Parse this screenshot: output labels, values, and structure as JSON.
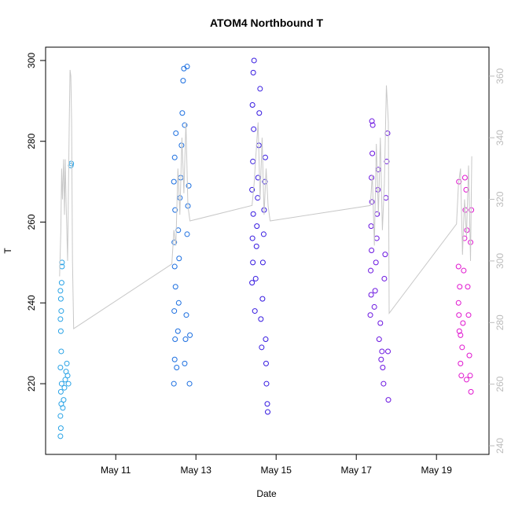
{
  "chart_data": {
    "type": "scatter",
    "title": "ATOM4 Northbound T",
    "x_label": "Date",
    "y_label": "T",
    "xlim": [
      9.25,
      20.31
    ],
    "ylim": [
      202.5,
      303.3
    ],
    "y2lim": [
      237.2,
      369.4
    ],
    "xticks": [
      {
        "value": 11,
        "label": "May 11"
      },
      {
        "value": 13,
        "label": "May 13"
      },
      {
        "value": 15,
        "label": "May 15"
      },
      {
        "value": 17,
        "label": "May 17"
      },
      {
        "value": 19,
        "label": "May 19"
      }
    ],
    "yticks": [
      220,
      240,
      260,
      280,
      300
    ],
    "y2ticks": [
      240,
      260,
      280,
      300,
      320,
      340,
      360
    ],
    "series": [
      {
        "type": "scatter",
        "color": "#29a3e6",
        "x": [
          9.62,
          9.63,
          9.62,
          9.64,
          9.63,
          9.65,
          9.62,
          9.64,
          9.63,
          9.62,
          9.64,
          9.63,
          9.62,
          9.65,
          9.66,
          9.66,
          9.68,
          9.7,
          9.72,
          9.74,
          9.76,
          9.78,
          9.8,
          9.82,
          9.88,
          9.89
        ],
        "values": [
          207,
          209,
          212,
          215,
          218,
          220,
          224,
          228,
          233,
          236,
          238,
          241,
          243,
          245,
          249,
          250,
          214,
          216,
          219,
          221,
          223,
          225,
          222,
          220,
          274,
          274.5
        ]
      },
      {
        "type": "scatter",
        "color": "#1a6ee0",
        "x": [
          12.45,
          12.47,
          12.48,
          12.46,
          12.49,
          12.47,
          12.46,
          12.48,
          12.45,
          12.47,
          12.5,
          12.52,
          12.55,
          12.57,
          12.58,
          12.56,
          12.6,
          12.62,
          12.64,
          12.66,
          12.68,
          12.7,
          12.72,
          12.74,
          12.76,
          12.78,
          12.8,
          12.82,
          12.84,
          12.85,
          12.78,
          12.72
        ],
        "values": [
          220,
          226,
          231,
          238,
          244,
          249,
          255,
          263,
          270,
          276,
          282,
          224,
          233,
          240,
          251,
          258,
          266,
          271,
          279,
          287,
          295,
          298,
          225,
          231,
          237,
          257,
          264,
          269,
          220,
          232,
          298.5,
          284
        ]
      },
      {
        "type": "scatter",
        "color": "#3519e0",
        "x": [
          14.4,
          14.42,
          14.41,
          14.43,
          14.4,
          14.42,
          14.44,
          14.41,
          14.43,
          14.45,
          14.47,
          14.49,
          14.51,
          14.52,
          14.54,
          14.55,
          14.57,
          14.58,
          14.6,
          14.62,
          14.64,
          14.66,
          14.67,
          14.69,
          14.7,
          14.72,
          14.73,
          14.75,
          14.76,
          14.78,
          14.79,
          14.74
        ],
        "values": [
          245,
          250,
          256,
          262,
          268,
          275,
          283,
          289,
          297,
          300,
          238,
          246,
          254,
          259,
          266,
          271,
          279,
          287,
          293,
          236,
          229,
          241,
          250,
          257,
          263,
          270,
          276,
          225,
          220,
          215,
          213,
          231
        ]
      },
      {
        "type": "scatter",
        "color": "#6a14e0",
        "x": [
          17.35,
          17.37,
          17.36,
          17.38,
          17.37,
          17.39,
          17.38,
          17.4,
          17.39,
          17.41,
          17.45,
          17.47,
          17.49,
          17.51,
          17.52,
          17.54,
          17.55,
          17.57,
          17.6,
          17.62,
          17.64,
          17.66,
          17.68,
          17.7,
          17.72,
          17.74,
          17.76,
          17.78,
          17.8,
          17.79
        ],
        "values": [
          237,
          242,
          248,
          253,
          259,
          265,
          271,
          277,
          285,
          284,
          239,
          243,
          250,
          256,
          262,
          268,
          273,
          231,
          235,
          226,
          228,
          224,
          220,
          246,
          252,
          266,
          275,
          282,
          216,
          228
        ]
      },
      {
        "type": "scatter",
        "color": "#e014cf",
        "x": [
          19.55,
          19.56,
          19.57,
          19.55,
          19.58,
          19.6,
          19.62,
          19.64,
          19.66,
          19.68,
          19.7,
          19.72,
          19.74,
          19.71,
          19.76,
          19.78,
          19.8,
          19.82,
          19.84,
          19.86,
          19.85,
          19.87,
          19.56,
          19.6,
          19.75
        ],
        "values": [
          240,
          237,
          233,
          249,
          244,
          225,
          222,
          229,
          235,
          248,
          256,
          263,
          268,
          271,
          258,
          244,
          237,
          227,
          222,
          218,
          255,
          263,
          270,
          232,
          221
        ]
      },
      {
        "type": "line",
        "axis": "y2",
        "color": "#c8c8c8",
        "x": [
          9.6,
          9.63,
          9.65,
          9.67,
          9.7,
          9.72,
          9.74,
          9.76,
          9.8,
          9.84,
          9.86,
          9.88,
          9.9,
          9.92,
          9.95,
          12.4,
          12.45,
          12.5,
          12.55,
          12.6,
          12.65,
          12.7,
          12.75,
          12.8,
          12.85,
          14.4,
          14.45,
          14.5,
          14.55,
          14.6,
          14.65,
          14.7,
          14.75,
          14.8,
          14.85,
          17.35,
          17.4,
          17.45,
          17.5,
          17.55,
          17.6,
          17.65,
          17.7,
          17.75,
          17.8,
          17.82,
          19.5,
          19.55,
          19.6,
          19.65,
          19.7,
          19.75,
          19.8,
          19.85,
          19.88
        ],
        "values": [
          295,
          310,
          330,
          320,
          333,
          315,
          333,
          320,
          300,
          345,
          362,
          360,
          345,
          300,
          278,
          299,
          310,
          305,
          330,
          315,
          340,
          322,
          345,
          318,
          313,
          318,
          325,
          335,
          345,
          320,
          340,
          315,
          330,
          318,
          313,
          318,
          328,
          305,
          338,
          315,
          340,
          310,
          325,
          357,
          345,
          283,
          312,
          325,
          330,
          302,
          320,
          308,
          331,
          300,
          334
        ]
      }
    ]
  }
}
